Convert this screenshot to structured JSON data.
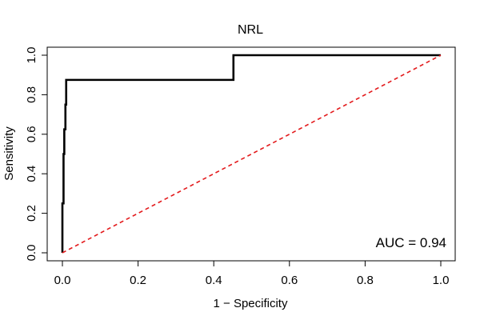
{
  "chart_data": {
    "type": "line",
    "title": "NRL",
    "xlabel": "1 − Specificity",
    "ylabel": "Sensitivity",
    "xlim": [
      0,
      1
    ],
    "ylim": [
      0,
      1
    ],
    "xticks": [
      "0.0",
      "0.2",
      "0.4",
      "0.6",
      "0.8",
      "1.0"
    ],
    "yticks": [
      "0.0",
      "0.2",
      "0.4",
      "0.6",
      "0.8",
      "1.0"
    ],
    "grid": false,
    "series": [
      {
        "style": "solid",
        "color": "#000000",
        "points": [
          [
            0.0,
            0.0
          ],
          [
            0.0,
            0.25
          ],
          [
            0.003,
            0.25
          ],
          [
            0.003,
            0.5
          ],
          [
            0.005,
            0.5
          ],
          [
            0.005,
            0.625
          ],
          [
            0.008,
            0.625
          ],
          [
            0.008,
            0.75
          ],
          [
            0.01,
            0.75
          ],
          [
            0.01,
            0.875
          ],
          [
            0.452,
            0.875
          ],
          [
            0.452,
            1.0
          ],
          [
            1.0,
            1.0
          ]
        ]
      },
      {
        "style": "dashed",
        "color": "#e31a1c",
        "points": [
          [
            0.0,
            0.0
          ],
          [
            1.0,
            1.0
          ]
        ]
      }
    ],
    "annotation": "AUC = 0.94"
  }
}
